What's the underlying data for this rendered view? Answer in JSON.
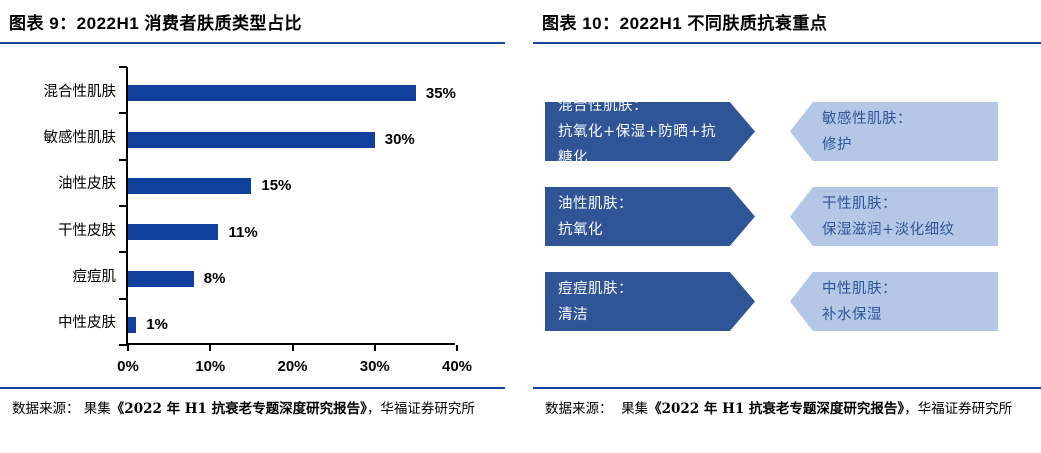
{
  "left_panel": {
    "title": "图表 9：2022H1 消费者肤质类型占比",
    "source": {
      "prefix": "数据来源： 果集",
      "report": "《2022 年 H1 抗衰老专题深度研究报告》",
      "suffix": "，华福证券研究所"
    }
  },
  "right_panel": {
    "title": "图表 10：2022H1 不同肤质抗衰重点",
    "rows": [
      {
        "dark": {
          "line1": "混合性肌肤：",
          "line2": "抗氧化+保湿+防晒+抗糖化"
        },
        "light": {
          "line1": "敏感性肌肤：",
          "line2": "修护"
        }
      },
      {
        "dark": {
          "line1": "油性肌肤：",
          "line2": "抗氧化"
        },
        "light": {
          "line1": "干性肌肤：",
          "line2": "保湿滋润+淡化细纹"
        }
      },
      {
        "dark": {
          "line1": "痘痘肌肤：",
          "line2": "清洁"
        },
        "light": {
          "line1": "中性肌肤：",
          "line2": "补水保湿"
        }
      }
    ],
    "source": {
      "prefix": "数据来源：  果集",
      "report": "《2022 年 H1 抗衰老专题深度研究报告》",
      "suffix": "，华福证券研究所"
    }
  },
  "chart_data": {
    "type": "bar",
    "orientation": "horizontal",
    "title": "2022H1 消费者肤质类型占比",
    "categories": [
      "混合性肌肤",
      "敏感性肌肤",
      "油性皮肤",
      "干性皮肤",
      "痘痘肌",
      "中性皮肤"
    ],
    "values": [
      35,
      30,
      15,
      11,
      8,
      1
    ],
    "value_labels": [
      "35%",
      "30%",
      "15%",
      "11%",
      "8%",
      "1%"
    ],
    "x_ticks": [
      "0%",
      "10%",
      "20%",
      "30%",
      "40%"
    ],
    "xlim": [
      0,
      40
    ],
    "grid": false,
    "legend": "none",
    "bar_color": "#10409d"
  },
  "colors": {
    "bar": "#10409d",
    "dark_arrow": "#2f5597",
    "light_arrow": "#b4c7e7",
    "light_arrow_text": "#2f5597",
    "rule_line": "#17479e",
    "axis": "#000000"
  }
}
